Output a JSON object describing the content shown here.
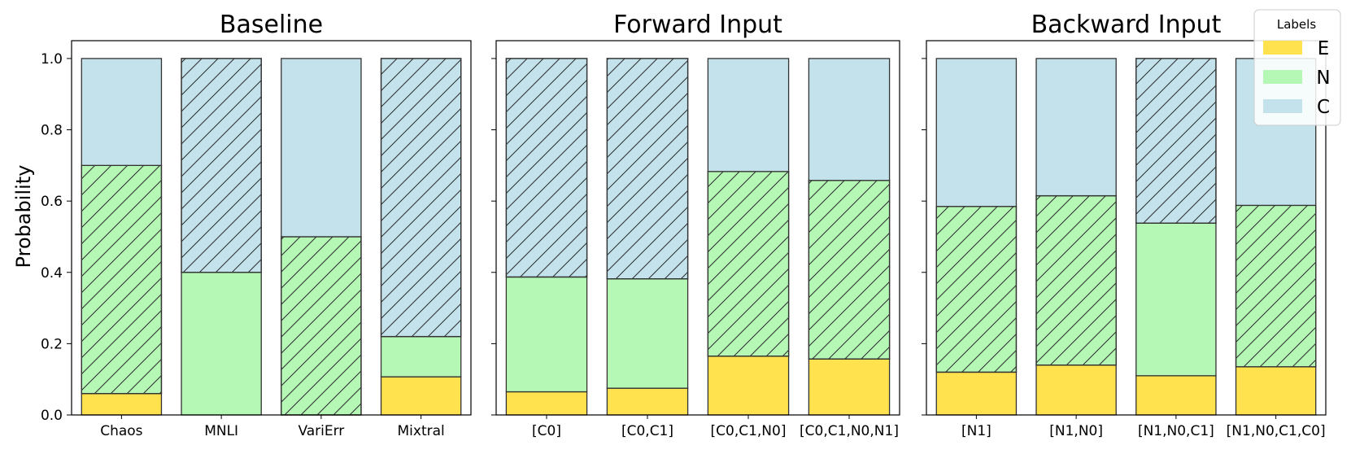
{
  "chart_data": [
    {
      "type": "bar",
      "stacked": true,
      "title": "Baseline",
      "categories": [
        "Chaos",
        "MNLI",
        "VariErr",
        "Mixtral"
      ],
      "ylabel": "Probability",
      "ylim": [
        0,
        1.05
      ],
      "yticks": [
        "0.0",
        "0.2",
        "0.4",
        "0.6",
        "0.8",
        "1.0"
      ],
      "series": [
        {
          "name": "E",
          "values": [
            0.06,
            0.0,
            0.0,
            0.107
          ]
        },
        {
          "name": "N",
          "values": [
            0.64,
            0.4,
            0.5,
            0.113
          ]
        },
        {
          "name": "C",
          "values": [
            0.3,
            0.6,
            0.5,
            0.78
          ]
        }
      ],
      "hatched_segment": [
        "N",
        "C",
        "N",
        "C"
      ]
    },
    {
      "type": "bar",
      "stacked": true,
      "title": "Forward Input",
      "categories": [
        "[C0]",
        "[C0,C1]",
        "[C0,C1,N0]",
        "[C0,C1,N0,N1]"
      ],
      "ylim": [
        0,
        1.05
      ],
      "series": [
        {
          "name": "E",
          "values": [
            0.065,
            0.075,
            0.165,
            0.157
          ]
        },
        {
          "name": "N",
          "values": [
            0.322,
            0.307,
            0.518,
            0.501
          ]
        },
        {
          "name": "C",
          "values": [
            0.613,
            0.618,
            0.317,
            0.342
          ]
        }
      ],
      "hatched_segment": [
        "C",
        "C",
        "N",
        "N"
      ]
    },
    {
      "type": "bar",
      "stacked": true,
      "title": "Backward Input",
      "categories": [
        "[N1]",
        "[N1,N0]",
        "[N1,N0,C1]",
        "[N1,N0,C1,C0]"
      ],
      "ylim": [
        0,
        1.05
      ],
      "series": [
        {
          "name": "E",
          "values": [
            0.12,
            0.14,
            0.11,
            0.135
          ]
        },
        {
          "name": "N",
          "values": [
            0.465,
            0.475,
            0.428,
            0.453
          ]
        },
        {
          "name": "C",
          "values": [
            0.415,
            0.385,
            0.462,
            0.412
          ]
        }
      ],
      "hatched_segment": [
        "N",
        "N",
        "C",
        "N"
      ]
    }
  ],
  "legend": {
    "title": "Labels",
    "placement": "top-right",
    "entries": [
      {
        "label": "E",
        "color": "#ffe24d"
      },
      {
        "label": "N",
        "color": "#b5f8b5"
      },
      {
        "label": "C",
        "color": "#c3e2ec"
      }
    ]
  },
  "colors": {
    "E": "#ffe24d",
    "N": "#b5f8b5",
    "C": "#c3e2ec",
    "edge": "#333333"
  }
}
